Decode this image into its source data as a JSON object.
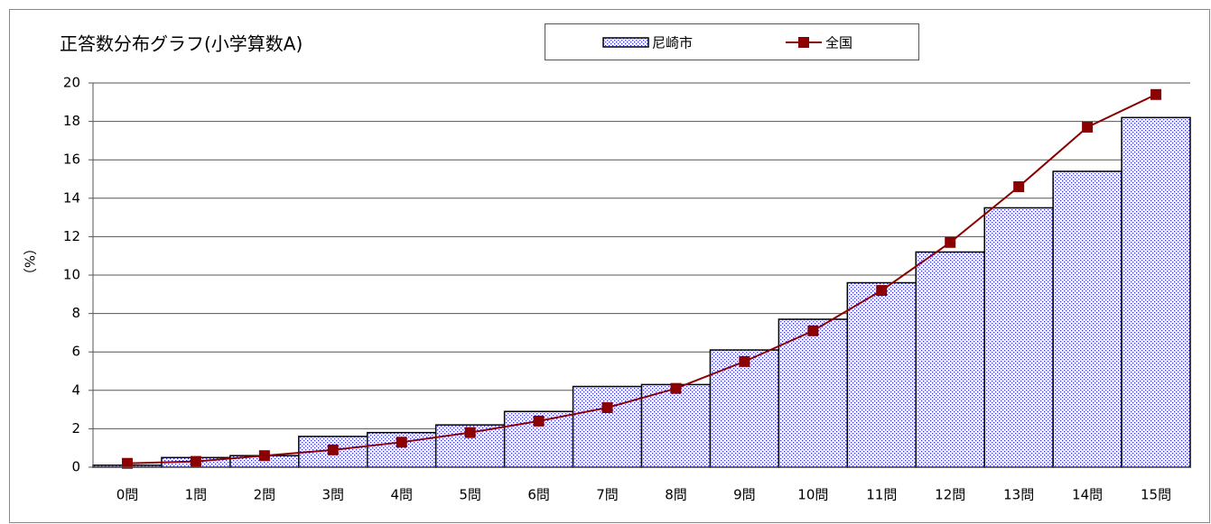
{
  "chart_data": {
    "type": "bar",
    "title": "正答数分布グラフ(小学算数A)",
    "y_label": "（%）",
    "categories": [
      "0問",
      "1問",
      "2問",
      "3問",
      "4問",
      "5問",
      "6問",
      "7問",
      "8問",
      "9問",
      "10問",
      "11問",
      "12問",
      "13問",
      "14問",
      "15問"
    ],
    "series": [
      {
        "name": "尼崎市",
        "type": "bar",
        "color": "#3333cc",
        "values": [
          0.1,
          0.5,
          0.6,
          1.6,
          1.8,
          2.2,
          2.9,
          4.2,
          4.3,
          6.1,
          7.7,
          9.6,
          11.2,
          13.5,
          15.4,
          18.2
        ]
      },
      {
        "name": "全国",
        "type": "line",
        "color": "#8b0000",
        "values": [
          0.2,
          0.3,
          0.6,
          0.9,
          1.3,
          1.8,
          2.4,
          3.1,
          4.1,
          5.5,
          7.1,
          9.2,
          11.7,
          14.6,
          17.7,
          19.4
        ]
      }
    ],
    "ylim": [
      0,
      20
    ],
    "yticks": [
      0,
      2,
      4,
      6,
      8,
      10,
      12,
      14,
      16,
      18,
      20
    ],
    "grid": true
  }
}
